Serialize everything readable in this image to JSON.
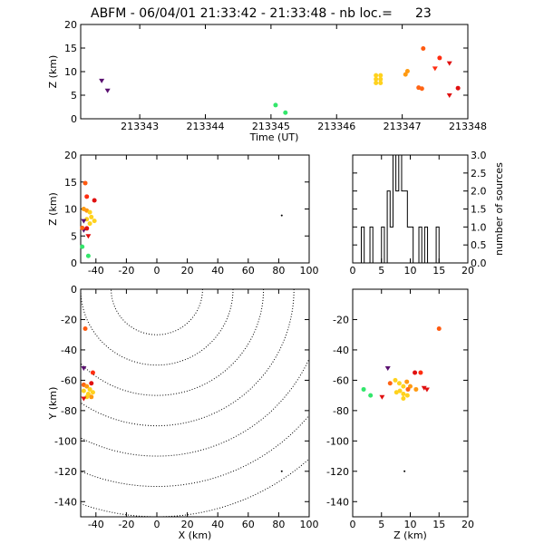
{
  "header": {
    "title": "ABFM - 06/04/01 21:33:42 - 21:33:48 - nb loc.=",
    "count": "23"
  },
  "chart_data": [
    {
      "id": "time_z",
      "type": "scatter",
      "xlabel": "Time (UT)",
      "ylabel": "Z (km)",
      "xlim": [
        213342.1,
        213348
      ],
      "ylim": [
        0,
        20
      ],
      "xticks": [
        213343,
        213344,
        213345,
        213346,
        213347,
        213348
      ],
      "yticks": [
        0,
        5,
        10,
        15,
        20
      ],
      "points": [
        {
          "t": 213342.42,
          "z": 8.1,
          "color": "#5a1070",
          "m": "v"
        },
        {
          "t": 213342.51,
          "z": 6.0,
          "color": "#5a1070",
          "m": "v"
        },
        {
          "t": 213345.07,
          "z": 2.9,
          "color": "#33e66b",
          "m": "o"
        },
        {
          "t": 213345.22,
          "z": 1.3,
          "color": "#33e66b",
          "m": "o"
        },
        {
          "t": 213346.6,
          "z": 9.2,
          "color": "#ffd21e",
          "m": "o"
        },
        {
          "t": 213346.6,
          "z": 8.4,
          "color": "#ffd21e",
          "m": "o"
        },
        {
          "t": 213346.6,
          "z": 7.6,
          "color": "#ffd21e",
          "m": "o"
        },
        {
          "t": 213346.67,
          "z": 9.2,
          "color": "#ffd21e",
          "m": "o"
        },
        {
          "t": 213346.67,
          "z": 8.4,
          "color": "#ffd21e",
          "m": "o"
        },
        {
          "t": 213346.67,
          "z": 7.6,
          "color": "#ffd21e",
          "m": "o"
        },
        {
          "t": 213347.08,
          "z": 10.1,
          "color": "#ff9a12",
          "m": "o"
        },
        {
          "t": 213347.05,
          "z": 9.4,
          "color": "#ff9a12",
          "m": "o"
        },
        {
          "t": 213347.25,
          "z": 6.6,
          "color": "#ff6414",
          "m": "o"
        },
        {
          "t": 213347.3,
          "z": 6.4,
          "color": "#ff6414",
          "m": "o"
        },
        {
          "t": 213347.32,
          "z": 14.9,
          "color": "#ff5a10",
          "m": "o"
        },
        {
          "t": 213347.5,
          "z": 10.7,
          "color": "#ff2d10",
          "m": "v"
        },
        {
          "t": 213347.57,
          "z": 12.9,
          "color": "#ff2d10",
          "m": "o"
        },
        {
          "t": 213347.72,
          "z": 11.8,
          "color": "#e01010",
          "m": "v"
        },
        {
          "t": 213347.72,
          "z": 5.0,
          "color": "#e01010",
          "m": "v"
        },
        {
          "t": 213347.85,
          "z": 6.5,
          "color": "#e01010",
          "m": "o"
        }
      ]
    },
    {
      "id": "x_z",
      "type": "scatter",
      "xlabel": "",
      "ylabel": "Z (km)",
      "xlim": [
        -50,
        100
      ],
      "ylim": [
        0,
        20
      ],
      "xticks": [
        -40,
        -20,
        0,
        20,
        40,
        60,
        80,
        100
      ],
      "yticks": [
        0,
        5,
        10,
        15,
        20
      ],
      "points": [
        {
          "x": -49,
          "z": 3.0,
          "color": "#33e66b",
          "m": "o"
        },
        {
          "x": -45,
          "z": 1.3,
          "color": "#33e66b",
          "m": "o"
        },
        {
          "x": -47,
          "z": 14.8,
          "color": "#ff5a10",
          "m": "o"
        },
        {
          "x": -46,
          "z": 12.3,
          "color": "#ff2d10",
          "m": "o"
        },
        {
          "x": -41,
          "z": 11.6,
          "color": "#e01010",
          "m": "o"
        },
        {
          "x": -48,
          "z": 10.0,
          "color": "#ff9a12",
          "m": "o"
        },
        {
          "x": -46,
          "z": 9.7,
          "color": "#ff9a12",
          "m": "o"
        },
        {
          "x": -44,
          "z": 9.4,
          "color": "#ffd21e",
          "m": "o"
        },
        {
          "x": -43,
          "z": 8.5,
          "color": "#ffd21e",
          "m": "o"
        },
        {
          "x": -46,
          "z": 8.1,
          "color": "#ffd21e",
          "m": "o"
        },
        {
          "x": -41,
          "z": 7.8,
          "color": "#ffd21e",
          "m": "o"
        },
        {
          "x": -44,
          "z": 7.3,
          "color": "#ffd21e",
          "m": "o"
        },
        {
          "x": -48,
          "z": 7.8,
          "color": "#5a1070",
          "m": "v"
        },
        {
          "x": -48,
          "z": 6.1,
          "color": "#5a1070",
          "m": "v"
        },
        {
          "x": -49,
          "z": 6.5,
          "color": "#ff6414",
          "m": "o"
        },
        {
          "x": -46,
          "z": 6.4,
          "color": "#e01010",
          "m": "o"
        },
        {
          "x": -45,
          "z": 5.0,
          "color": "#e01010",
          "m": "v"
        },
        {
          "x": 82,
          "z": 8.8,
          "color": "#000000",
          "m": "dot"
        }
      ]
    },
    {
      "id": "z_hist",
      "type": "bar",
      "xlabel": "",
      "ylabel": "number of sources",
      "xlim": [
        0,
        20
      ],
      "ylim": [
        0,
        3.0
      ],
      "xticks": [
        0,
        5,
        10,
        15,
        20
      ],
      "yticks": [
        0.0,
        0.5,
        1.0,
        1.5,
        2.0,
        2.5,
        3.0
      ],
      "bin_width": 0.5,
      "bins": [
        {
          "start": 1.5,
          "count": 1
        },
        {
          "start": 3.0,
          "count": 1
        },
        {
          "start": 5.0,
          "count": 1
        },
        {
          "start": 6.0,
          "count": 2
        },
        {
          "start": 6.5,
          "count": 1
        },
        {
          "start": 7.0,
          "count": 3
        },
        {
          "start": 7.5,
          "count": 2
        },
        {
          "start": 8.0,
          "count": 3
        },
        {
          "start": 8.5,
          "count": 2
        },
        {
          "start": 9.0,
          "count": 2
        },
        {
          "start": 9.5,
          "count": 1
        },
        {
          "start": 10.0,
          "count": 1
        },
        {
          "start": 11.5,
          "count": 1
        },
        {
          "start": 12.5,
          "count": 1
        },
        {
          "start": 14.5,
          "count": 1
        }
      ]
    },
    {
      "id": "x_y",
      "type": "scatter",
      "xlabel": "X (km)",
      "ylabel": "Y (km)",
      "xlim": [
        -50,
        100
      ],
      "ylim": [
        -150,
        0
      ],
      "xticks": [
        -40,
        -20,
        0,
        20,
        40,
        60,
        80,
        100
      ],
      "yticks": [
        -140,
        -120,
        -100,
        -80,
        -60,
        -40,
        -20,
        0
      ],
      "range_rings_km": [
        30,
        50,
        70,
        90,
        110,
        130,
        150
      ],
      "points": [
        {
          "x": -47,
          "y": -26,
          "color": "#ff5a10",
          "m": "o"
        },
        {
          "x": -48,
          "y": -52,
          "color": "#5a1070",
          "m": "v"
        },
        {
          "x": -48,
          "y": -63,
          "color": "#ff6414",
          "m": "o"
        },
        {
          "x": -42,
          "y": -55,
          "color": "#ff2d10",
          "m": "o"
        },
        {
          "x": -43,
          "y": -62,
          "color": "#e01010",
          "m": "o"
        },
        {
          "x": -46,
          "y": -64,
          "color": "#ff9a12",
          "m": "o"
        },
        {
          "x": -44,
          "y": -66,
          "color": "#ffd21e",
          "m": "o"
        },
        {
          "x": -48,
          "y": -67,
          "color": "#ffd21e",
          "m": "o"
        },
        {
          "x": -45,
          "y": -69,
          "color": "#ffd21e",
          "m": "o"
        },
        {
          "x": -42,
          "y": -68,
          "color": "#ffd21e",
          "m": "o"
        },
        {
          "x": -46,
          "y": -71,
          "color": "#ffd21e",
          "m": "o"
        },
        {
          "x": -43,
          "y": -71,
          "color": "#ff9a12",
          "m": "o"
        },
        {
          "x": -48,
          "y": -72,
          "color": "#e01010",
          "m": "v"
        },
        {
          "x": 82,
          "y": -120,
          "color": "#000000",
          "m": "dot"
        }
      ]
    },
    {
      "id": "z_y",
      "type": "scatter",
      "xlabel": "Z (km)",
      "ylabel": "",
      "xlim": [
        0,
        20
      ],
      "ylim": [
        -150,
        0
      ],
      "xticks": [
        0,
        5,
        10,
        15,
        20
      ],
      "yticks": [
        -140,
        -120,
        -100,
        -80,
        -60,
        -40,
        -20
      ],
      "points": [
        {
          "x": 15.0,
          "y": -26,
          "color": "#ff5a10",
          "m": "o"
        },
        {
          "x": 6.1,
          "y": -52,
          "color": "#5a1070",
          "m": "v"
        },
        {
          "x": 11.8,
          "y": -55,
          "color": "#ff2d10",
          "m": "o"
        },
        {
          "x": 10.8,
          "y": -55,
          "color": "#e01010",
          "m": "o"
        },
        {
          "x": 6.5,
          "y": -62,
          "color": "#ff6414",
          "m": "o"
        },
        {
          "x": 7.4,
          "y": -60,
          "color": "#ffd21e",
          "m": "o"
        },
        {
          "x": 8.1,
          "y": -62,
          "color": "#ffd21e",
          "m": "o"
        },
        {
          "x": 9.4,
          "y": -61,
          "color": "#ff9a12",
          "m": "o"
        },
        {
          "x": 8.8,
          "y": -64,
          "color": "#ffd21e",
          "m": "o"
        },
        {
          "x": 10.0,
          "y": -64,
          "color": "#ff9a12",
          "m": "o"
        },
        {
          "x": 12.4,
          "y": -65,
          "color": "#e01010",
          "m": "v"
        },
        {
          "x": 12.9,
          "y": -66,
          "color": "#e01010",
          "m": "v"
        },
        {
          "x": 9.6,
          "y": -66,
          "color": "#ff6414",
          "m": "o"
        },
        {
          "x": 11.0,
          "y": -66,
          "color": "#ff9a12",
          "m": "o"
        },
        {
          "x": 8.2,
          "y": -67,
          "color": "#ffd21e",
          "m": "o"
        },
        {
          "x": 7.6,
          "y": -68,
          "color": "#ffd21e",
          "m": "o"
        },
        {
          "x": 8.8,
          "y": -69,
          "color": "#ffd21e",
          "m": "o"
        },
        {
          "x": 9.5,
          "y": -70,
          "color": "#ffd21e",
          "m": "o"
        },
        {
          "x": 1.9,
          "y": -66,
          "color": "#33e66b",
          "m": "o"
        },
        {
          "x": 3.1,
          "y": -70,
          "color": "#33e66b",
          "m": "o"
        },
        {
          "x": 5.1,
          "y": -71,
          "color": "#e01010",
          "m": "v"
        },
        {
          "x": 8.8,
          "y": -72,
          "color": "#ffd21e",
          "m": "o"
        },
        {
          "x": 9.0,
          "y": -120,
          "color": "#000000",
          "m": "dot"
        }
      ]
    }
  ]
}
